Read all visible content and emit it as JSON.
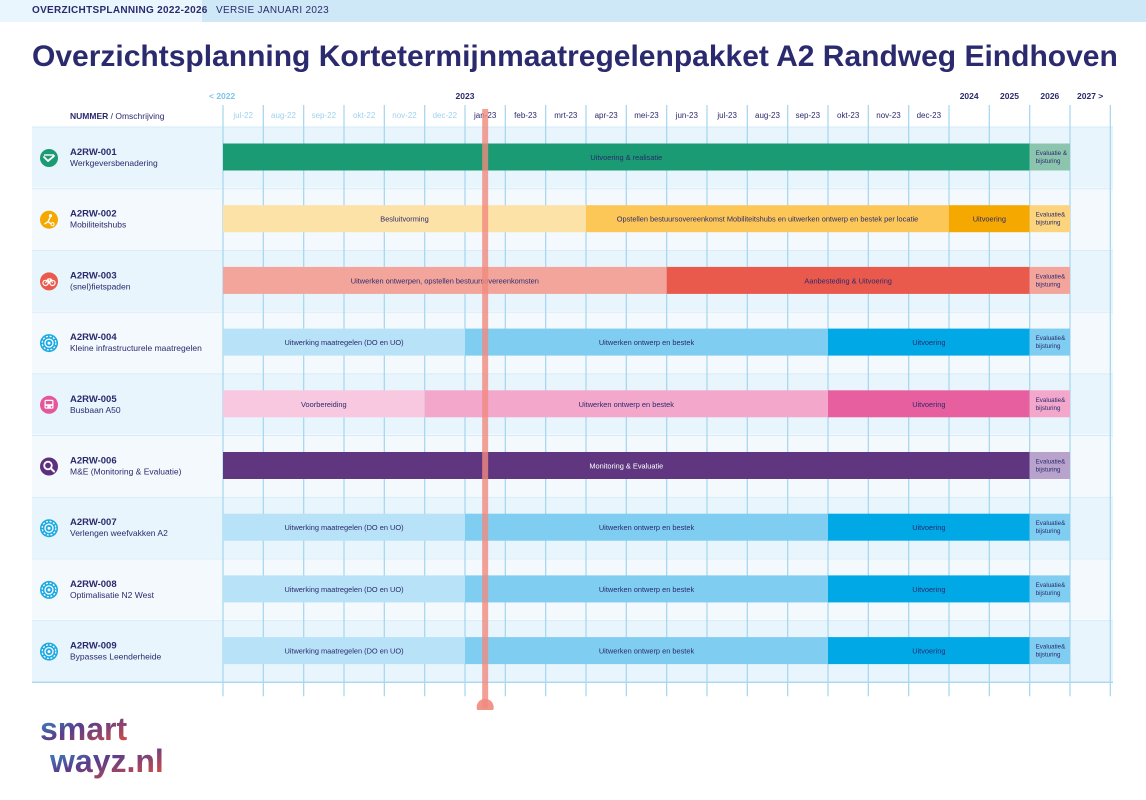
{
  "header": {
    "label": "OVERZICHTSPLANNING 2022-2026",
    "version": "VERSIE JANUARI 2023"
  },
  "title": "Overzichtsplanning Kortetermijnmaatregelenpakket A2 Randweg Eindhoven",
  "logo": {
    "line1": "smart",
    "line2": "wayz.nl"
  },
  "colors": {
    "primary": "#2b2a6e",
    "grid": "#a9d8f1",
    "today": "#f08a7e"
  },
  "chart_data": {
    "type": "gantt",
    "title": "Overzichtsplanning Kortetermijnmaatregelenpakket A2 Randweg Eindhoven",
    "column_header": {
      "bold": "NUMMER",
      "rest": " / Omschrijving"
    },
    "year_labels": [
      {
        "label": "< 2022",
        "col": 0
      },
      {
        "label": "2023",
        "col": 6
      },
      {
        "label": "2024",
        "col": 18
      },
      {
        "label": "2025",
        "col": 19
      },
      {
        "label": "2026",
        "col": 20
      },
      {
        "label": "2027 >",
        "col": 21
      }
    ],
    "columns": [
      "jul-22",
      "aug-22",
      "sep-22",
      "okt-22",
      "nov-22",
      "dec-22",
      "jan-23",
      "feb-23",
      "mrt-23",
      "apr-23",
      "mei-23",
      "jun-23",
      "jul-23",
      "aug-23",
      "sep-23",
      "okt-23",
      "nov-23",
      "dec-23",
      "",
      "",
      "",
      ""
    ],
    "past_columns": 6,
    "today_col": 6.5,
    "rows": [
      {
        "id": "A2RW-001",
        "desc": "Werkgeversbenadering",
        "icon": "handshake-icon",
        "iconColor": "#1a9b73",
        "bars": [
          {
            "label": "Uitvoering & realisatie",
            "start": 0,
            "end": 20,
            "color": "#1a9b73",
            "text": "#2b2a6e"
          },
          {
            "label": "Evaluatie & bijsturing",
            "start": 20,
            "end": 21,
            "color": "#8cc5ad",
            "text": "#2b2a6e"
          }
        ]
      },
      {
        "id": "A2RW-002",
        "desc": "Mobiliteitshubs",
        "icon": "hub-icon",
        "iconColor": "#f5a800",
        "bars": [
          {
            "label": "Besluitvorming",
            "start": 0,
            "end": 9,
            "color": "#fde2a7",
            "text": "#2b2a6e"
          },
          {
            "label": "Opstellen bestuursovereenkomst Mobiliteitshubs en uitwerken ontwerp en bestek per locatie",
            "start": 9,
            "end": 18,
            "color": "#fcc757",
            "text": "#2b2a6e"
          },
          {
            "label": "Uitvoering",
            "start": 18,
            "end": 20,
            "color": "#f5a800",
            "text": "#2b2a6e"
          },
          {
            "label": "Evaluatie& bijsturing",
            "start": 20,
            "end": 21,
            "color": "#fcd47d",
            "text": "#2b2a6e"
          }
        ]
      },
      {
        "id": "A2RW-003",
        "desc": "(snel)fietspaden",
        "icon": "bike-icon",
        "iconColor": "#ea5a4c",
        "bars": [
          {
            "label": "Uitwerken ontwerpen, opstellen bestuursovereenkomsten",
            "start": 0,
            "end": 11,
            "color": "#f3a59c",
            "text": "#2b2a6e"
          },
          {
            "label": "Aanbesteding & Uitvoering",
            "start": 11,
            "end": 20,
            "color": "#ea5a4c",
            "text": "#2b2a6e"
          },
          {
            "label": "Evaluatie& bijsturing",
            "start": 20,
            "end": 21,
            "color": "#f3a59c",
            "text": "#2b2a6e"
          }
        ]
      },
      {
        "id": "A2RW-004",
        "desc": "Kleine infrastructurele maatregelen",
        "icon": "gear-icon",
        "iconColor": "#1aa9e3",
        "bars": [
          {
            "label": "Uitwerking maatregelen (DO en UO)",
            "start": 0,
            "end": 6,
            "color": "#b8e2f7",
            "text": "#2b2a6e"
          },
          {
            "label": "Uitwerken ontwerp en bestek",
            "start": 6,
            "end": 15,
            "color": "#7fcdf1",
            "text": "#2b2a6e"
          },
          {
            "label": "Uitvoering",
            "start": 15,
            "end": 20,
            "color": "#00a9e6",
            "text": "#2b2a6e"
          },
          {
            "label": "Evaluatie& bijsturing",
            "start": 20,
            "end": 21,
            "color": "#7fcdf1",
            "text": "#2b2a6e"
          }
        ]
      },
      {
        "id": "A2RW-005",
        "desc": "Busbaan A50",
        "icon": "bus-icon",
        "iconColor": "#e5569a",
        "bars": [
          {
            "label": "Voorbereiding",
            "start": 0,
            "end": 5,
            "color": "#f7c8df",
            "text": "#2b2a6e"
          },
          {
            "label": "Uitwerken ontwerp en bestek",
            "start": 5,
            "end": 15,
            "color": "#f2a7cb",
            "text": "#2b2a6e"
          },
          {
            "label": "Uitvoering",
            "start": 15,
            "end": 20,
            "color": "#e85fa0",
            "text": "#2b2a6e"
          },
          {
            "label": "Evaluatie& bijsturing",
            "start": 20,
            "end": 21,
            "color": "#f2a7cb",
            "text": "#2b2a6e"
          }
        ]
      },
      {
        "id": "A2RW-006",
        "desc": "M&E (Monitoring & Evaluatie)",
        "icon": "magnifier-icon",
        "iconColor": "#5e2f7e",
        "bars": [
          {
            "label": "Monitoring & Evaluatie",
            "start": 0,
            "end": 20,
            "color": "#5f367f",
            "text": "#ffffff"
          },
          {
            "label": "Evaluatie& bijsturing",
            "start": 20,
            "end": 21,
            "color": "#b8a3cc",
            "text": "#2b2a6e"
          }
        ]
      },
      {
        "id": "A2RW-007",
        "desc": "Verlengen weefvakken A2",
        "icon": "gear-icon",
        "iconColor": "#1aa9e3",
        "bars": [
          {
            "label": "Uitwerking maatregelen (DO en UO)",
            "start": 0,
            "end": 6,
            "color": "#b8e2f7",
            "text": "#2b2a6e"
          },
          {
            "label": "Uitwerken ontwerp en bestek",
            "start": 6,
            "end": 15,
            "color": "#7fcdf1",
            "text": "#2b2a6e"
          },
          {
            "label": "Uitvoering",
            "start": 15,
            "end": 20,
            "color": "#00a9e6",
            "text": "#2b2a6e"
          },
          {
            "label": "Evaluatie& bijsturing",
            "start": 20,
            "end": 21,
            "color": "#7fcdf1",
            "text": "#2b2a6e"
          }
        ]
      },
      {
        "id": "A2RW-008",
        "desc": "Optimalisatie N2 West",
        "icon": "gear-icon",
        "iconColor": "#1aa9e3",
        "bars": [
          {
            "label": "Uitwerking maatregelen (DO en UO)",
            "start": 0,
            "end": 6,
            "color": "#b8e2f7",
            "text": "#2b2a6e"
          },
          {
            "label": "Uitwerken ontwerp en bestek",
            "start": 6,
            "end": 15,
            "color": "#7fcdf1",
            "text": "#2b2a6e"
          },
          {
            "label": "Uitvoering",
            "start": 15,
            "end": 20,
            "color": "#00a9e6",
            "text": "#2b2a6e"
          },
          {
            "label": "Evaluatie& bijsturing",
            "start": 20,
            "end": 21,
            "color": "#7fcdf1",
            "text": "#2b2a6e"
          }
        ]
      },
      {
        "id": "A2RW-009",
        "desc": "Bypasses Leenderheide",
        "icon": "gear-icon",
        "iconColor": "#1aa9e3",
        "bars": [
          {
            "label": "Uitwerking maatregelen (DO en UO)",
            "start": 0,
            "end": 6,
            "color": "#b8e2f7",
            "text": "#2b2a6e"
          },
          {
            "label": "Uitwerken ontwerp en bestek",
            "start": 6,
            "end": 15,
            "color": "#7fcdf1",
            "text": "#2b2a6e"
          },
          {
            "label": "Uitvoering",
            "start": 15,
            "end": 20,
            "color": "#00a9e6",
            "text": "#2b2a6e"
          },
          {
            "label": "Evaluatie& bijsturing",
            "start": 20,
            "end": 21,
            "color": "#7fcdf1",
            "text": "#2b2a6e"
          }
        ]
      }
    ]
  }
}
